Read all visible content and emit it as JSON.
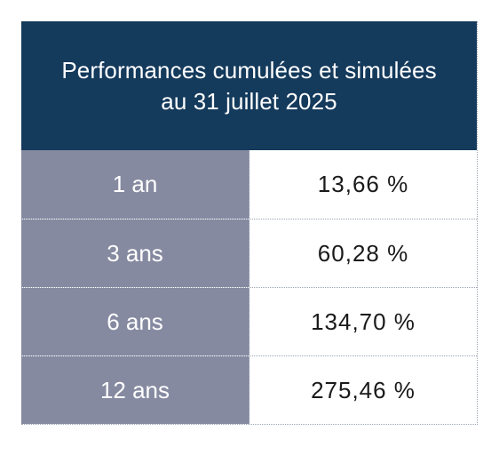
{
  "colors": {
    "header_bg": "#143a5c",
    "label_bg": "#868aa1",
    "value_bg": "#ffffff"
  },
  "table": {
    "title_line1": "Performances cumulées et simulées",
    "title_line2": "au 31 juillet 2025",
    "rows": [
      {
        "period": "1 an",
        "value": "13,66 %"
      },
      {
        "period": "3 ans",
        "value": "60,28 %"
      },
      {
        "period": "6 ans",
        "value": "134,70 %"
      },
      {
        "period": "12 ans",
        "value": "275,46 %"
      }
    ]
  }
}
